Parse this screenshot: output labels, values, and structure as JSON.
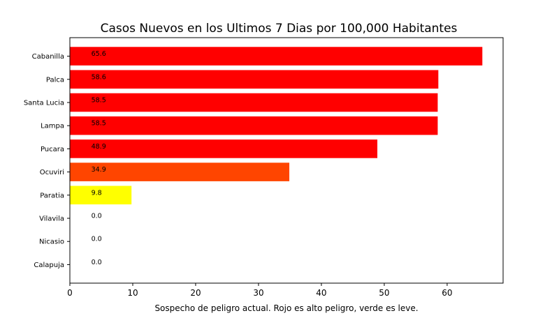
{
  "chart_data": {
    "type": "bar",
    "orientation": "horizontal",
    "title": "Casos Nuevos en los Ultimos 7 Dias por 100,000 Habitantes",
    "xlabel": "Sospecho de peligro actual. Rojo es alto peligro, verde es leve.",
    "ylabel": "",
    "categories": [
      "Cabanilla",
      "Palca",
      "Santa Lucia",
      "Lampa",
      "Pucara",
      "Ocuviri",
      "Paratia",
      "Vilavila",
      "Nicasio",
      "Calapuja"
    ],
    "values": [
      65.6,
      58.6,
      58.5,
      58.5,
      48.9,
      34.9,
      9.8,
      0.0,
      0.0,
      0.0
    ],
    "value_labels": [
      "65.6",
      "58.6",
      "58.5",
      "58.5",
      "48.9",
      "34.9",
      "9.8",
      "0.0",
      "0.0",
      "0.0"
    ],
    "colors": [
      "#ff0000",
      "#ff0000",
      "#ff0000",
      "#ff0000",
      "#ff0000",
      "#ff4500",
      "#ffff00",
      "#ffffff",
      "#ffffff",
      "#ffffff"
    ],
    "xlim": [
      0,
      68.9
    ],
    "xticks": [
      0,
      10,
      20,
      30,
      40,
      50,
      60
    ],
    "grid": false,
    "legend": "none"
  }
}
